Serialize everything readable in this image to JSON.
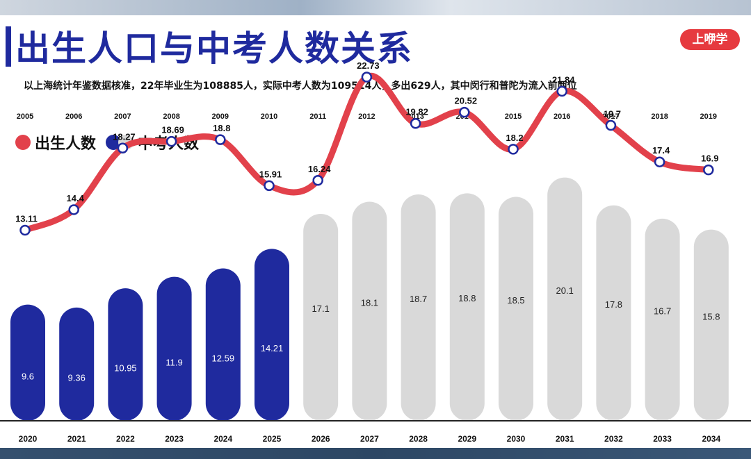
{
  "header": {
    "title": "出生人口与中考人数关系",
    "badge": "上咿学",
    "subtitle": "以上海统计年鉴数据核准，22年毕业生为108885人，实际中考人数为109514人，多出629人，其中闵行和普陀为流入前两位"
  },
  "legend": {
    "birth": "出生人数",
    "exam": "中考人数"
  },
  "colors": {
    "title": "#1f2a9e",
    "line": "#e2414b",
    "bar_actual": "#1f2a9e",
    "bar_projected": "#d9d9d9",
    "badge": "#e63a3f"
  },
  "chart_data": {
    "type": "bar",
    "birth_years": [
      "2005",
      "2006",
      "2007",
      "2008",
      "2009",
      "2010",
      "2011",
      "2012",
      "2013",
      "2014",
      "2015",
      "2016",
      "2017",
      "2018",
      "2019"
    ],
    "exam_years": [
      "2020",
      "2021",
      "2022",
      "2023",
      "2024",
      "2025",
      "2026",
      "2027",
      "2028",
      "2029",
      "2030",
      "2031",
      "2032",
      "2033",
      "2034"
    ],
    "series": [
      {
        "name": "出生人数",
        "type": "line",
        "values": [
          13.11,
          14.4,
          18.27,
          18.69,
          18.8,
          15.91,
          16.24,
          22.73,
          19.82,
          20.52,
          18.2,
          21.84,
          19.7,
          17.4,
          16.9
        ],
        "labels": [
          "13.11",
          "14.4",
          "18.27",
          "18.69",
          "18.8",
          "15.91",
          "16.24",
          "22.73",
          "19.82",
          "20.52",
          "18.2",
          "21.84",
          "19.7",
          "17.4",
          "16.9"
        ]
      },
      {
        "name": "中考人数",
        "type": "bar",
        "values": [
          9.6,
          9.36,
          10.95,
          11.9,
          12.59,
          14.21,
          17.1,
          18.1,
          18.7,
          18.8,
          18.5,
          20.1,
          17.8,
          16.7,
          15.8
        ],
        "labels": [
          "9.6",
          "9.36",
          "10.95",
          "11.9",
          "12.59",
          "14.21",
          "17.1",
          "18.1",
          "18.7",
          "18.8",
          "18.5",
          "20.1",
          "17.8",
          "16.7",
          "15.8"
        ],
        "actual_count": 6
      }
    ],
    "grid": false,
    "legend_position": "top-left"
  }
}
